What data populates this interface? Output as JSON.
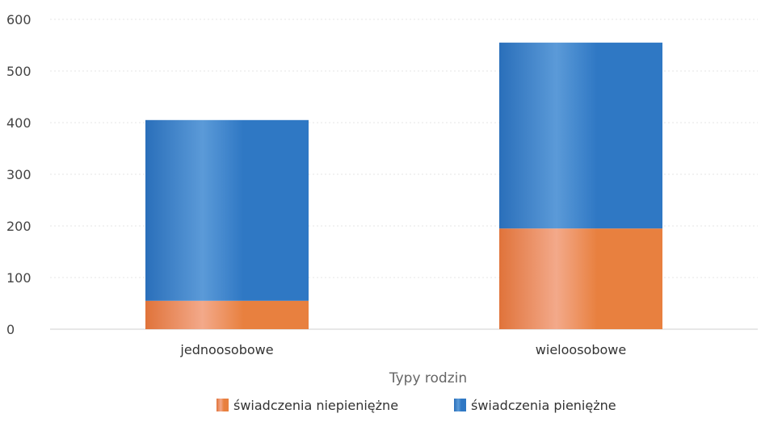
{
  "chart_data": {
    "type": "bar",
    "stacked": true,
    "categories": [
      "jednoosobowe",
      "wieloosobowe"
    ],
    "series": [
      {
        "name": "świadczenia niepieniężne",
        "values": [
          55,
          195
        ],
        "color": "#e8803f"
      },
      {
        "name": "świadczenia pieniężne",
        "values": [
          350,
          360
        ],
        "color": "#2f78c4"
      }
    ],
    "xlabel": "Typy rodzin",
    "ylabel": "",
    "ylim": [
      0,
      600
    ],
    "yticks": [
      0,
      100,
      200,
      300,
      400,
      500,
      600
    ],
    "grid": true,
    "legend_position": "bottom"
  }
}
